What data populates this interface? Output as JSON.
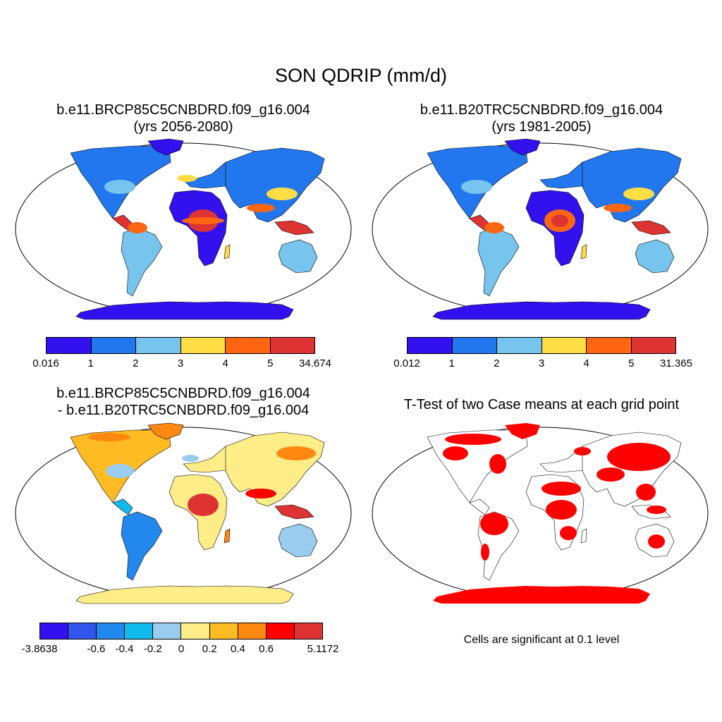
{
  "main_title": "SON QDRIP (mm/d)",
  "panels": [
    {
      "id": "case",
      "title_line1": "b.e11.BRCP85C5CNBDRD.f09_g16.004",
      "title_line2": "(yrs 2056-2080)",
      "colorbar": {
        "colors": [
          "#3311ee",
          "#2277ee",
          "#77c4ee",
          "#ffdd44",
          "#ff6611",
          "#dd3333"
        ],
        "labels": [
          "0.016",
          "1",
          "2",
          "3",
          "4",
          "5",
          "34.674"
        ]
      }
    },
    {
      "id": "control",
      "title_line1": "b.e11.B20TRC5CNBDRD.f09_g16.004",
      "title_line2": "(yrs 1981-2005)",
      "colorbar": {
        "colors": [
          "#3311ee",
          "#2277ee",
          "#77c4ee",
          "#ffdd44",
          "#ff6611",
          "#dd3333"
        ],
        "labels": [
          "0.012",
          "1",
          "2",
          "3",
          "4",
          "5",
          "31.365"
        ]
      }
    },
    {
      "id": "difference",
      "title_line1": "b.e11.BRCP85C5CNBDRD.f09_g16.004",
      "title_line2": "- b.e11.B20TRC5CNBDRD.f09_g16.004",
      "colorbar": {
        "colors": [
          "#3311ee",
          "#3355ee",
          "#2288ee",
          "#11bbee",
          "#99ccee",
          "#ffee88",
          "#ffbb22",
          "#ff8811",
          "#ff0000",
          "#dd3333"
        ],
        "labels": [
          "-3.8638",
          "",
          "-0.6",
          "-0.4",
          "-0.2",
          "0",
          "0.2",
          "0.4",
          "0.6",
          "",
          "5.1172"
        ]
      }
    },
    {
      "id": "ttest",
      "title_line1": "T-Test of two Case means at each grid point",
      "note": "Cells are significant at 0.1 level",
      "sig_color": "#ff0000"
    }
  ]
}
